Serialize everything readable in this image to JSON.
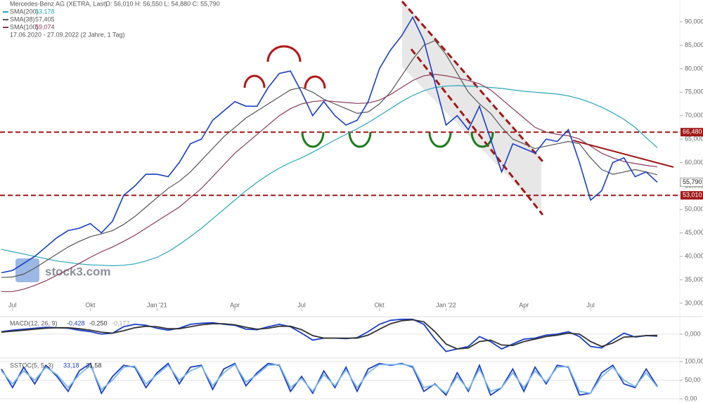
{
  "chart_data": [
    {
      "type": "line",
      "title": "Mercedes-Benz AG (XETRA, Last)",
      "ohlc": "O: 56,010  H: 56,550  L: 54,880  C: 55,790",
      "date_range": "17.06.2020 - 27.09.2022  (2 Jahre, 1 Tag)",
      "watermark": "stock3.com",
      "categories": [
        null,
        "Jul",
        null,
        null,
        null,
        null,
        null,
        null,
        "Okt",
        null,
        null,
        null,
        null,
        null,
        "Jan '21",
        null,
        null,
        null,
        null,
        null,
        null,
        "Apr",
        null,
        null,
        null,
        null,
        null,
        "Jul",
        null,
        null,
        null,
        null,
        null,
        null,
        "Okt",
        null,
        null,
        null,
        null,
        null,
        "Jan '22",
        null,
        null,
        null,
        null,
        null,
        null,
        "Apr",
        null,
        null,
        null,
        null,
        null,
        "Jul",
        null,
        null,
        null,
        null,
        null,
        null
      ],
      "price": {
        "color": "#1a3ec8",
        "values": [
          36500,
          37000,
          38500,
          40000,
          42000,
          44000,
          45500,
          46000,
          47000,
          45000,
          47500,
          53000,
          55000,
          57500,
          57500,
          57000,
          60000,
          64000,
          65000,
          69000,
          71000,
          73000,
          72000,
          72000,
          76000,
          79000,
          79500,
          75000,
          70000,
          73000,
          70000,
          68000,
          69000,
          73000,
          80000,
          84000,
          87000,
          91000,
          86000,
          77000,
          68000,
          70000,
          67000,
          72000,
          65000,
          58000,
          64000,
          63000,
          62000,
          65000,
          64500,
          67000,
          60000,
          52000,
          54000,
          60000,
          61000,
          57000,
          58000,
          55790
        ],
        "last_label": {
          "value": 55790,
          "label": "55,790"
        }
      },
      "series": [
        {
          "name": "SMA(200)",
          "legend_value": "63,178",
          "color": "#2aa6b8",
          "values": [
            41500,
            41000,
            40500,
            40000,
            39500,
            39000,
            38700,
            38400,
            38200,
            38100,
            38000,
            38100,
            38400,
            39000,
            39800,
            41000,
            42500,
            44200,
            46000,
            48000,
            50000,
            52000,
            54000,
            55800,
            57400,
            58800,
            60000,
            61000,
            62200,
            63500,
            64800,
            66000,
            67200,
            68500,
            70000,
            71500,
            73000,
            74300,
            75300,
            76000,
            76300,
            76400,
            76300,
            76200,
            76000,
            75800,
            75500,
            75200,
            75000,
            74800,
            74600,
            74200,
            73600,
            72800,
            71800,
            70600,
            69200,
            67500,
            65300,
            63178
          ]
        },
        {
          "name": "SMA(38)",
          "legend_value": "57,405",
          "color": "#555555",
          "values": [
            35500,
            35600,
            36200,
            37500,
            39000,
            40500,
            42000,
            43200,
            44200,
            44800,
            45500,
            46800,
            48500,
            50500,
            52500,
            54500,
            56000,
            58000,
            60500,
            63000,
            65500,
            67500,
            69500,
            71000,
            72500,
            74000,
            75500,
            76000,
            75000,
            73500,
            72500,
            71500,
            70500,
            70800,
            72500,
            75000,
            78500,
            82000,
            85000,
            86000,
            83000,
            79000,
            75000,
            72500,
            70500,
            67500,
            65000,
            64000,
            63000,
            63500,
            64000,
            64500,
            64000,
            61000,
            58500,
            57500,
            58000,
            58500,
            58000,
            57405
          ]
        },
        {
          "name": "SMA(100)",
          "legend_value": "59,074",
          "color": "#8a3a5a",
          "values": [
            32500,
            32500,
            33000,
            33800,
            34800,
            36000,
            37200,
            38500,
            39800,
            41000,
            42000,
            43200,
            44500,
            46000,
            47500,
            49000,
            50500,
            52500,
            54500,
            57000,
            59500,
            62000,
            64000,
            66000,
            68000,
            70000,
            71500,
            72500,
            73000,
            73200,
            73000,
            72800,
            72600,
            72700,
            73300,
            74500,
            76000,
            77500,
            78500,
            78800,
            78500,
            78000,
            77500,
            76800,
            75500,
            73500,
            71500,
            69500,
            67500,
            66500,
            66000,
            65700,
            65000,
            63500,
            62000,
            61000,
            60200,
            59800,
            59400,
            59074
          ]
        }
      ],
      "reference_lines": [
        {
          "value": 66480,
          "label": "66,480",
          "color": "#a01818"
        },
        {
          "value": 53010,
          "label": "53,010",
          "color": "#a01818"
        }
      ],
      "ylim": [
        27750,
        94650
      ],
      "yticks": [
        {
          "value": 30000,
          "label": "30,000"
        },
        {
          "value": 35000,
          "label": "35,000"
        },
        {
          "value": 40000,
          "label": "40,000"
        },
        {
          "value": 45000,
          "label": "45,000"
        },
        {
          "value": 50000,
          "label": "50,000"
        },
        {
          "value": 55000,
          "label": "55,000"
        },
        {
          "value": 60000,
          "label": "60,000"
        },
        {
          "value": 65000,
          "label": "65,000"
        },
        {
          "value": 70000,
          "label": "70,000"
        },
        {
          "value": 75000,
          "label": "75,000"
        },
        {
          "value": 80000,
          "label": "80,000"
        },
        {
          "value": 85000,
          "label": "85,000"
        },
        {
          "value": 90000,
          "label": "90,000"
        }
      ]
    },
    {
      "type": "line",
      "title": "MACD(12, 26, 9)",
      "legend_values": [
        "-0,428",
        "-0,250",
        "-0,177"
      ],
      "series": [
        {
          "color": "#1a3ec8",
          "values": [
            0.5,
            0.8,
            1.0,
            1.2,
            1.4,
            1.3,
            1.2,
            0.8,
            0.5,
            0.0,
            0.2,
            1.5,
            2.0,
            1.8,
            1.2,
            0.8,
            1.2,
            2.0,
            2.2,
            2.3,
            2.0,
            1.8,
            1.0,
            0.9,
            1.5,
            2.0,
            1.5,
            0.2,
            -1.2,
            -0.8,
            -0.8,
            -0.9,
            -0.7,
            0.5,
            2.0,
            2.8,
            3.0,
            3.0,
            2.0,
            -1.0,
            -3.5,
            -3.0,
            -2.5,
            -0.5,
            -1.5,
            -3.0,
            -2.0,
            -1.0,
            -0.8,
            -0.2,
            0.0,
            0.5,
            -0.5,
            -2.5,
            -2.8,
            -1.2,
            0.2,
            -0.6,
            -0.3,
            -0.428
          ]
        },
        {
          "color": "#333333",
          "values": [
            0.4,
            0.6,
            0.8,
            1.0,
            1.2,
            1.3,
            1.3,
            1.1,
            0.8,
            0.4,
            0.2,
            0.7,
            1.3,
            1.6,
            1.5,
            1.1,
            1.1,
            1.5,
            1.9,
            2.1,
            2.1,
            1.9,
            1.4,
            1.0,
            1.2,
            1.6,
            1.6,
            0.9,
            -0.3,
            -0.8,
            -0.8,
            -0.8,
            -0.8,
            -0.2,
            1.0,
            2.1,
            2.7,
            2.9,
            2.5,
            0.5,
            -2.0,
            -3.0,
            -2.8,
            -1.5,
            -1.2,
            -2.2,
            -2.3,
            -1.5,
            -1.0,
            -0.5,
            -0.2,
            0.2,
            0.0,
            -1.5,
            -2.5,
            -1.8,
            -0.6,
            -0.5,
            -0.3,
            -0.25
          ]
        }
      ],
      "ylim": [
        -4.7,
        3.4
      ],
      "yticks": [
        {
          "value": 0,
          "label": "0,000"
        }
      ]
    },
    {
      "type": "line",
      "title": "SSTOC(5, 5, 3)",
      "legend_values": [
        "33,18",
        "31,58"
      ],
      "series": [
        {
          "color": "#1a3ec8",
          "values": [
            80,
            30,
            85,
            40,
            90,
            60,
            20,
            75,
            95,
            15,
            60,
            90,
            85,
            30,
            70,
            95,
            40,
            85,
            90,
            25,
            80,
            95,
            35,
            70,
            95,
            90,
            20,
            60,
            15,
            75,
            30,
            85,
            20,
            80,
            95,
            90,
            95,
            85,
            20,
            40,
            10,
            70,
            20,
            90,
            10,
            30,
            80,
            20,
            85,
            40,
            90,
            85,
            10,
            15,
            70,
            90,
            40,
            30,
            80,
            33.18
          ]
        },
        {
          "color": "#7fb8e8",
          "values": [
            75,
            40,
            75,
            50,
            85,
            65,
            30,
            65,
            90,
            25,
            50,
            85,
            88,
            40,
            65,
            90,
            50,
            75,
            88,
            35,
            70,
            92,
            45,
            65,
            90,
            92,
            30,
            55,
            20,
            65,
            35,
            78,
            30,
            70,
            92,
            92,
            93,
            88,
            30,
            38,
            15,
            60,
            25,
            80,
            20,
            30,
            70,
            30,
            75,
            45,
            85,
            87,
            20,
            15,
            60,
            85,
            50,
            33,
            70,
            31.58
          ]
        }
      ],
      "ylim": [
        -7.5,
        105.7
      ],
      "yticks": [
        {
          "value": 100,
          "label": "100,00"
        },
        {
          "value": 50,
          "label": "50,00"
        },
        {
          "value": 0,
          "label": "0,00"
        }
      ]
    }
  ]
}
